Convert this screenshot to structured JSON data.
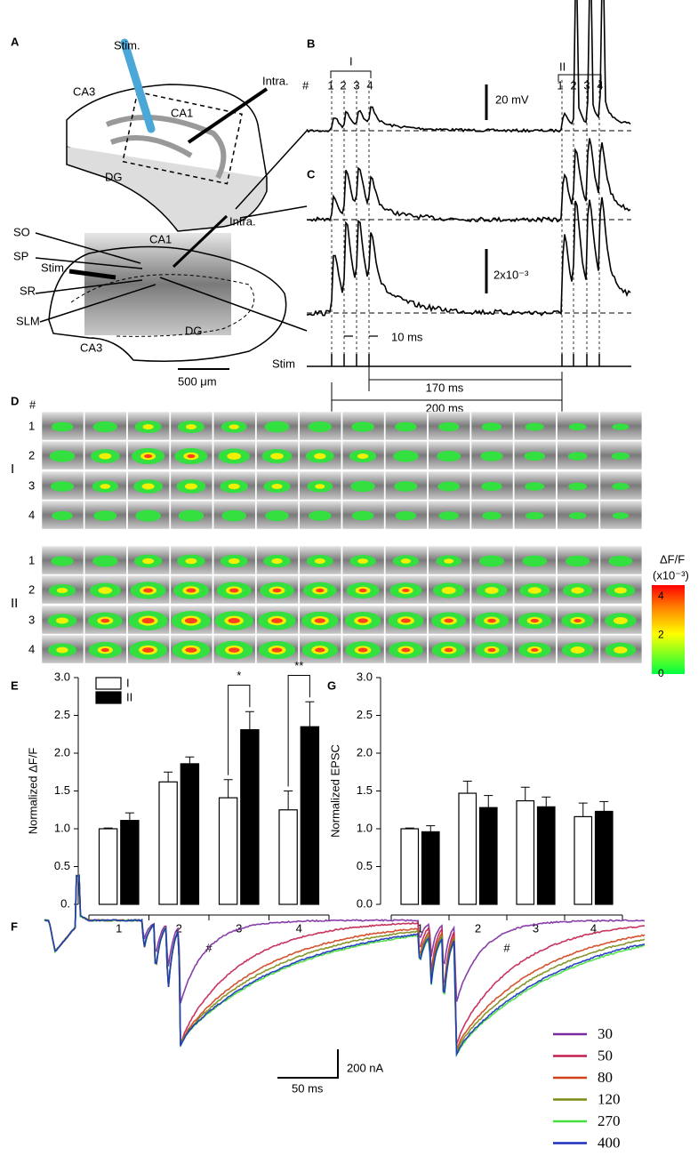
{
  "panel_a": {
    "label": "A",
    "texts": [
      "Stim.",
      "CA3",
      "CA1",
      "Intra.",
      "DG",
      "SO",
      "SP",
      "Stim.",
      "SR",
      "SLM",
      "CA1",
      "Intra.",
      "DG",
      "CA3",
      "500 μm"
    ]
  },
  "panel_b": {
    "label": "B",
    "hash": "#",
    "group1": "I",
    "group2": "II",
    "pulses1": [
      "1",
      "2",
      "3",
      "4"
    ],
    "pulses2": [
      "1",
      "2",
      "3",
      "4"
    ],
    "scale": "20 mV"
  },
  "panel_c": {
    "label": "C",
    "scale": "2x10⁻³",
    "interval": "10 ms",
    "stim": "Stim",
    "delay1": "170 ms",
    "delay2": "200 ms"
  },
  "panel_d": {
    "label": "D",
    "hash": "#",
    "groups": [
      {
        "name": "I",
        "rows": [
          "1",
          "2",
          "3",
          "4"
        ]
      },
      {
        "name": "II",
        "rows": [
          "1",
          "2",
          "3",
          "4"
        ]
      }
    ],
    "colorbar": {
      "title": "ΔF/F",
      "unit": "(x10⁻³)",
      "lim": [
        0,
        4.6
      ],
      "ticks": [
        0,
        2,
        4
      ]
    }
  },
  "chart_data": [
    {
      "type": "bar",
      "label": "E",
      "ylabel": "Normalized ΔF/F",
      "xlabel": "#",
      "categories": [
        "1",
        "2",
        "3",
        "4"
      ],
      "ylim": [
        0,
        3
      ],
      "yticks": [
        {
          "value": 0,
          "label": "0."
        },
        0.5,
        {
          "value": 1,
          "label": "1.0"
        },
        1.5,
        {
          "value": 2,
          "label": "2.0"
        },
        2.5,
        {
          "value": 3,
          "label": "3.0"
        }
      ],
      "legend": "upper left",
      "annotations": [
        null,
        null,
        "*",
        "**"
      ],
      "series": [
        {
          "name": "I",
          "color": "#ffffff",
          "values": [
            1.0,
            1.62,
            1.41,
            1.25
          ],
          "errors": [
            0.01,
            0.13,
            0.24,
            0.25
          ]
        },
        {
          "name": "II",
          "color": "#000000",
          "values": [
            1.11,
            1.86,
            2.31,
            2.35
          ],
          "errors": [
            0.1,
            0.09,
            0.24,
            0.33
          ]
        }
      ]
    },
    {
      "type": "bar",
      "label": "G",
      "ylabel": "Normalized EPSC",
      "xlabel": "#",
      "categories": [
        "1",
        "2",
        "3",
        "4"
      ],
      "ylim": [
        0,
        3
      ],
      "yticks": [
        {
          "value": 0,
          "label": "0.0"
        },
        0.5,
        {
          "value": 1,
          "label": "1.0"
        },
        1.5,
        {
          "value": 2,
          "label": "2.0"
        },
        2.5,
        {
          "value": 3,
          "label": "3.0"
        }
      ],
      "series": [
        {
          "color": "#ffffff",
          "values": [
            1.0,
            1.47,
            1.37,
            1.16
          ],
          "errors": [
            0.01,
            0.16,
            0.18,
            0.18
          ]
        },
        {
          "color": "#000000",
          "values": [
            0.96,
            1.28,
            1.29,
            1.23
          ],
          "errors": [
            0.08,
            0.16,
            0.13,
            0.13
          ]
        }
      ]
    }
  ],
  "panel_f": {
    "label": "F",
    "yscale": "200 nA",
    "xscale": "50 ms",
    "legend": [
      {
        "name": "30",
        "color": "#7a2aa0"
      },
      {
        "name": "50",
        "color": "#c21f4e"
      },
      {
        "name": "80",
        "color": "#d2401a"
      },
      {
        "name": "120",
        "color": "#7b8a14"
      },
      {
        "name": "270",
        "color": "#44e03c"
      },
      {
        "name": "400",
        "color": "#1a2fc0"
      }
    ]
  }
}
